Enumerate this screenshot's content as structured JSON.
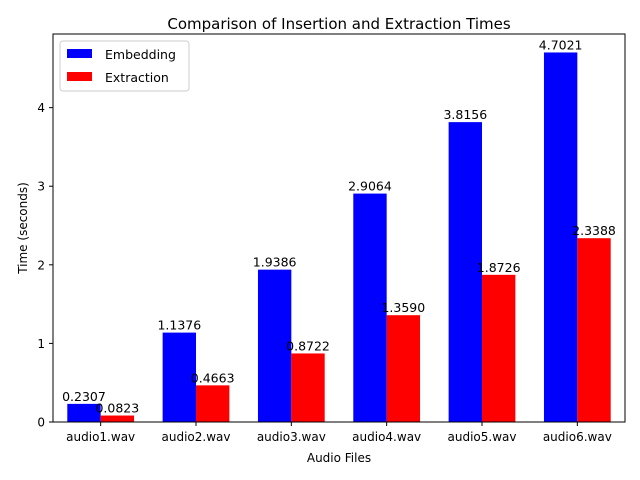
{
  "chart_data": {
    "type": "bar",
    "title": "Comparison of Insertion and Extraction Times",
    "xlabel": "Audio Files",
    "ylabel": "Time (seconds)",
    "categories": [
      "audio1.wav",
      "audio2.wav",
      "audio3.wav",
      "audio4.wav",
      "audio5.wav",
      "audio6.wav"
    ],
    "series": [
      {
        "name": "Embedding",
        "color": "#0000ff",
        "values": [
          0.2307,
          1.1376,
          1.9386,
          2.9064,
          3.8156,
          4.7021
        ],
        "labels": [
          "0.2307",
          "1.1376",
          "1.9386",
          "2.9064",
          "3.8156",
          "4.7021"
        ]
      },
      {
        "name": "Extraction",
        "color": "#ff0000",
        "values": [
          0.0823,
          0.4663,
          0.8722,
          1.359,
          1.8726,
          2.3388
        ],
        "labels": [
          "0.0823",
          "0.4663",
          "0.8722",
          "1.3590",
          "1.8726",
          "2.3388"
        ]
      }
    ],
    "ylim": [
      0,
      4.937
    ],
    "yticks": [
      0,
      1,
      2,
      3,
      4
    ],
    "grid": false,
    "legend_position": "top-left"
  }
}
